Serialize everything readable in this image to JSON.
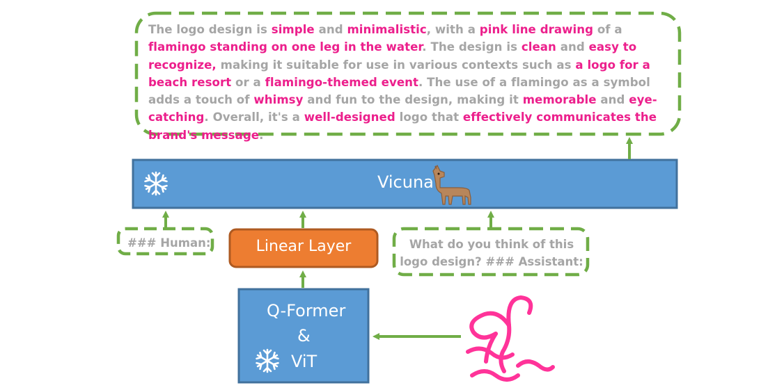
{
  "output": {
    "segments": [
      {
        "text": "The logo design is ",
        "hl": false
      },
      {
        "text": "simple",
        "hl": true
      },
      {
        "text": " and ",
        "hl": false
      },
      {
        "text": "minimalistic",
        "hl": true
      },
      {
        "text": ", with a ",
        "hl": false
      },
      {
        "text": "pink line drawing",
        "hl": true
      },
      {
        "text": " of a ",
        "hl": false
      },
      {
        "text": "flamingo standing on one leg in the water",
        "hl": true
      },
      {
        "text": ". The design is ",
        "hl": false
      },
      {
        "text": "clean",
        "hl": true
      },
      {
        "text": " and ",
        "hl": false
      },
      {
        "text": "easy to recognize,",
        "hl": true
      },
      {
        "text": " making it suitable for use in various contexts such as ",
        "hl": false
      },
      {
        "text": "a logo for a beach resort",
        "hl": true
      },
      {
        "text": " or a ",
        "hl": false
      },
      {
        "text": "flamingo-themed event",
        "hl": true
      },
      {
        "text": ". The use of a flamingo as a symbol adds a touch of ",
        "hl": false
      },
      {
        "text": "whimsy",
        "hl": true
      },
      {
        "text": " and fun to the design, making it ",
        "hl": false
      },
      {
        "text": "memorable",
        "hl": true
      },
      {
        "text": " and ",
        "hl": false
      },
      {
        "text": "eye-catching",
        "hl": true
      },
      {
        "text": ". Overall, it's a ",
        "hl": false
      },
      {
        "text": "well-designed",
        "hl": true
      },
      {
        "text": " logo that ",
        "hl": false
      },
      {
        "text": "effectively communicates the brand's message",
        "hl": true
      },
      {
        "text": ".",
        "hl": false
      }
    ]
  },
  "vicuna": {
    "label": "Vicuna",
    "icon": "llama-icon",
    "frozen_icon": "snowflake-icon"
  },
  "linear_layer": {
    "label": "Linear Layer"
  },
  "qformer": {
    "line1": "Q-Former",
    "line2": "&",
    "line3": "ViT",
    "frozen_icon": "snowflake-icon"
  },
  "human_prompt": {
    "label": "### Human:"
  },
  "user_prompt": {
    "line1": "What do you think of this",
    "line2": "logo design? ### Assistant:"
  },
  "input_image": {
    "icon": "flamingo-logo-icon"
  },
  "colors": {
    "highlight": "#ec1f8c",
    "text_gray": "#a5a5a5",
    "dash_green": "#70ad47",
    "block_blue": "#5b9bd5",
    "block_border": "#41719c",
    "linear_orange": "#ed7d31",
    "linear_border": "#ae5a21",
    "flamingo_pink": "#ff3399"
  }
}
